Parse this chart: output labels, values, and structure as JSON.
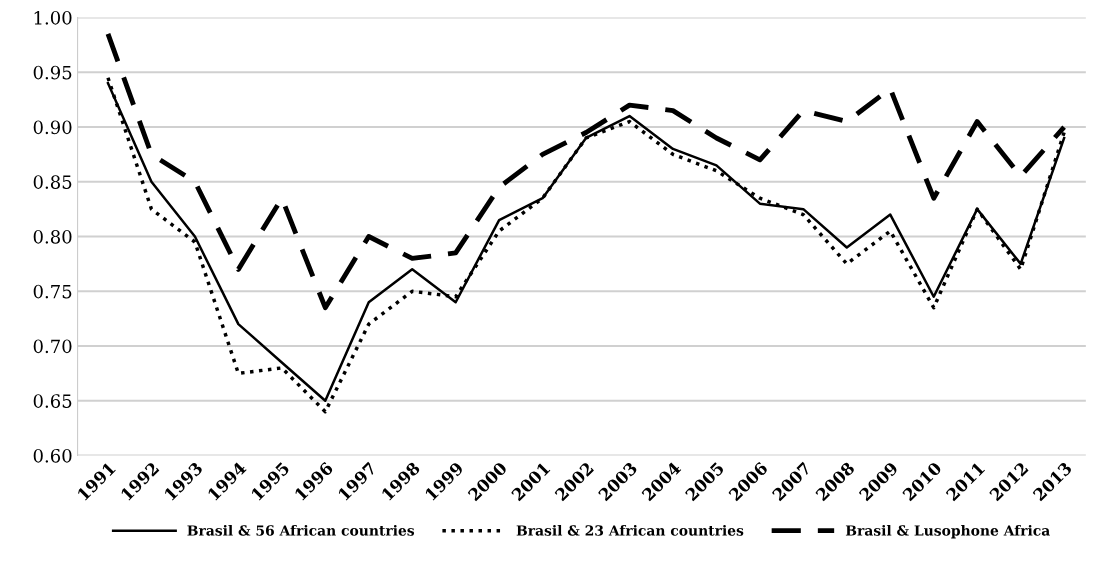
{
  "chart_data": {
    "type": "line",
    "categories": [
      "1991",
      "1992",
      "1993",
      "1994",
      "1995",
      "1996",
      "1997",
      "1998",
      "1999",
      "2000",
      "2001",
      "2002",
      "2003",
      "2004",
      "2005",
      "2006",
      "2007",
      "2008",
      "2009",
      "2010",
      "2011",
      "2012",
      "2013"
    ],
    "series": [
      {
        "name": "Brasil & 56 African countries",
        "color": "#000000",
        "line_style": "solid",
        "values": [
          0.94,
          0.85,
          0.8,
          0.72,
          0.685,
          0.65,
          0.74,
          0.77,
          0.74,
          0.815,
          0.835,
          0.89,
          0.91,
          0.88,
          0.865,
          0.83,
          0.825,
          0.79,
          0.82,
          0.745,
          0.825,
          0.775,
          0.89
        ]
      },
      {
        "name": "Brasil & 23 African countries",
        "color": "#000000",
        "line_style": "dotted",
        "values": [
          0.945,
          0.825,
          0.795,
          0.675,
          0.68,
          0.64,
          0.72,
          0.75,
          0.745,
          0.805,
          0.835,
          0.89,
          0.905,
          0.875,
          0.86,
          0.835,
          0.82,
          0.775,
          0.805,
          0.735,
          0.825,
          0.77,
          0.895
        ]
      },
      {
        "name": "Brasil & Lusophone Africa",
        "color": "#000000",
        "line_style": "dashed",
        "values": [
          0.985,
          0.875,
          0.85,
          0.77,
          0.835,
          0.735,
          0.8,
          0.78,
          0.785,
          0.845,
          0.875,
          0.895,
          0.92,
          0.915,
          0.89,
          0.87,
          0.915,
          0.905,
          0.935,
          0.835,
          0.905,
          0.855,
          0.9
        ]
      }
    ],
    "ylim": [
      0.6,
      1.0
    ],
    "yticks": [
      {
        "value": 0.6,
        "label": "0.60"
      },
      {
        "value": 0.65,
        "label": "0.65"
      },
      {
        "value": 0.7,
        "label": "0.70"
      },
      {
        "value": 0.75,
        "label": "0.75"
      },
      {
        "value": 0.8,
        "label": "0.80"
      },
      {
        "value": 0.85,
        "label": "0.85"
      },
      {
        "value": 0.9,
        "label": "0.90"
      },
      {
        "value": 0.95,
        "label": "0.95"
      },
      {
        "value": 1.0,
        "label": "1.00"
      }
    ],
    "grid": "y",
    "legend": "bottom",
    "marker": "none"
  }
}
